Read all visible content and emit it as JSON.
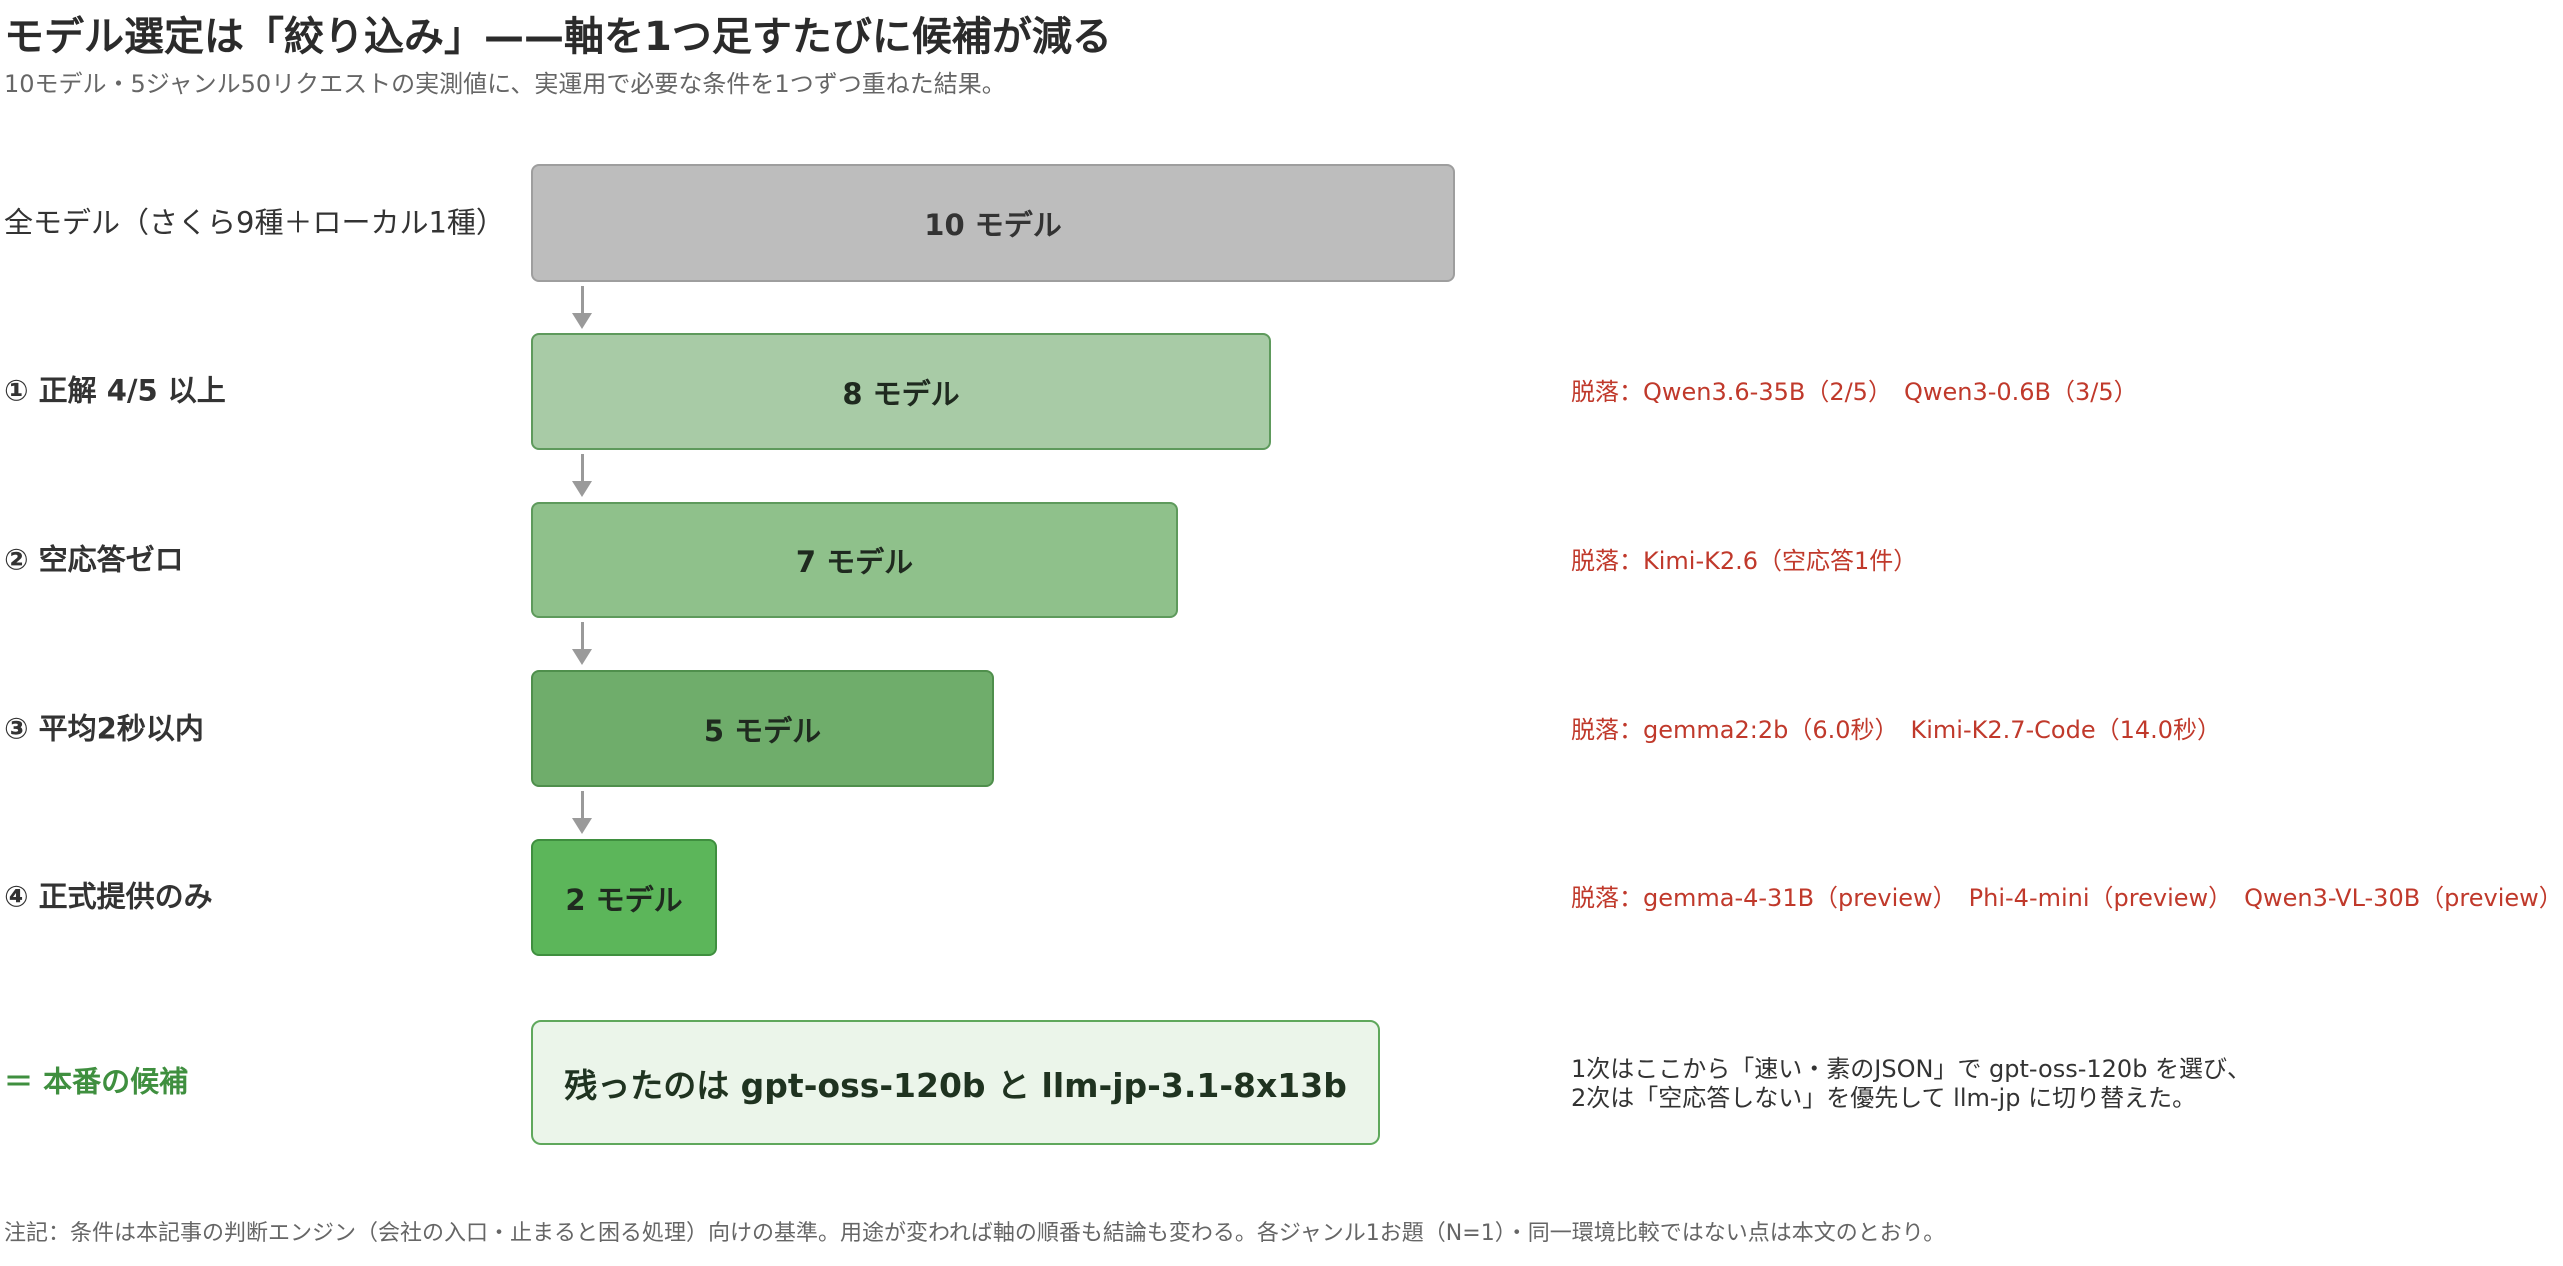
{
  "title": "モデル選定は「絞り込み」——軸を1つ足すたびに候補が減る",
  "subtitle": "10モデル・5ジャンル50リクエストの実測値に、実運用で必要な条件を1つずつ重ねた結果。",
  "steps": [
    {
      "label": "全モデル（さくら9種＋ローカル1種）",
      "count": 10,
      "bar_text": "10 モデル",
      "dropped": ""
    },
    {
      "label": "① 正解 4/5 以上",
      "count": 8,
      "bar_text": "8 モデル",
      "dropped": "脱落：Qwen3.6-35B（2/5）　Qwen3-0.6B（3/5）"
    },
    {
      "label": "② 空応答ゼロ",
      "count": 7,
      "bar_text": "7 モデル",
      "dropped": "脱落：Kimi-K2.6（空応答1件）"
    },
    {
      "label": "③ 平均2秒以内",
      "count": 5,
      "bar_text": "5 モデル",
      "dropped": "脱落：gemma2:2b（6.0秒）　Kimi-K2.7-Code（14.0秒）"
    },
    {
      "label": "④ 正式提供のみ",
      "count": 2,
      "bar_text": "2 モデル",
      "dropped": "脱落：gemma-4-31B（preview）　Phi-4-mini（preview）　Qwen3-VL-30B（preview）"
    }
  ],
  "result": {
    "label": "＝ 本番の候補",
    "text": "残ったのは gpt-oss-120b と llm-jp-3.1-8x13b",
    "note_line1": "1次はここから「速い・素のJSON」で gpt-oss-120b を選び、",
    "note_line2": "2次は「空応答しない」を優先して llm-jp に切り替えた。"
  },
  "footnote": "注記：条件は本記事の判断エンジン（会社の入口・止まると困る処理）向けの基準。用途が変われば軸の順番も結論も変わる。各ジャンル1お題（N=1）・同一環境比較ではない点は本文のとおり。",
  "colors": {
    "bar_all": "#bdbdbd",
    "bar_step1": "#a8cba6",
    "bar_step2": "#8fc18b",
    "bar_step3": "#6fad6b",
    "bar_step4": "#5cb65a",
    "result_bg": "#ebf5ea",
    "dropped_text": "#c0392b",
    "final_label": "#3f8f3f",
    "arrow": "#9a9a9a"
  }
}
